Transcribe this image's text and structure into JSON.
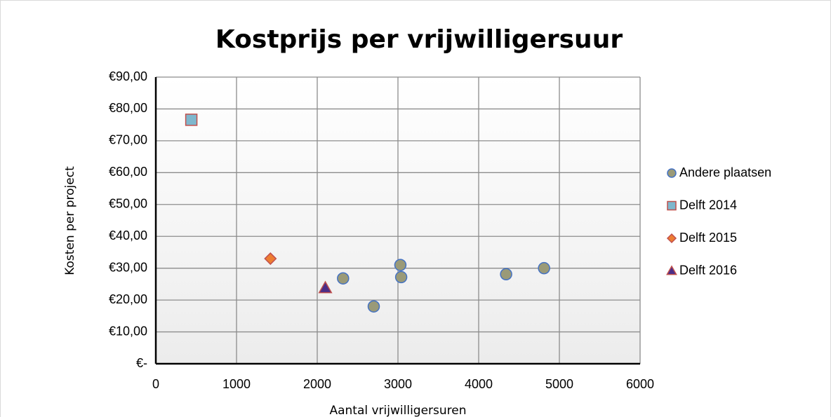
{
  "chart_data": {
    "type": "scatter",
    "title": "Kostprijs per vrijwilligersuur",
    "x_label": "Aantal vrijwilligersuren",
    "y_label": "Kosten per project",
    "xlim": [
      0,
      6000
    ],
    "xticks": [
      0,
      1000,
      2000,
      3000,
      4000,
      5000,
      6000
    ],
    "ylim": [
      0,
      90
    ],
    "yticks": [
      {
        "value": 0,
        "label": "€-"
      },
      {
        "value": 10,
        "label": "€10,00"
      },
      {
        "value": 20,
        "label": "€20,00"
      },
      {
        "value": 30,
        "label": "€30,00"
      },
      {
        "value": 40,
        "label": "€40,00"
      },
      {
        "value": 50,
        "label": "€50,00"
      },
      {
        "value": 60,
        "label": "€60,00"
      },
      {
        "value": 70,
        "label": "€70,00"
      },
      {
        "value": 80,
        "label": "€80,00"
      },
      {
        "value": 90,
        "label": "€90,00"
      }
    ],
    "grid": true,
    "legend": "right",
    "series": [
      {
        "name": "Andere plaatsen",
        "marker": "circle",
        "color": "#9a9a78",
        "edge_color": "#4472c4",
        "x": [
          2320,
          2700,
          3030,
          3040,
          4340,
          4810
        ],
        "values": [
          26.8,
          18.0,
          31.0,
          27.2,
          28.1,
          30.0
        ]
      },
      {
        "name": "Delft 2014",
        "marker": "square",
        "color": "#7fb7cd",
        "edge_color": "#c0504d",
        "x": [
          440
        ],
        "values": [
          76.6
        ]
      },
      {
        "name": "Delft 2015",
        "marker": "diamond",
        "color": "#ed7d31",
        "edge_color": "#c0504d",
        "x": [
          1420
        ],
        "values": [
          33.0
        ]
      },
      {
        "name": "Delft 2016",
        "marker": "triangle",
        "color": "#4b2d88",
        "edge_color": "#c0504d",
        "x": [
          2100
        ],
        "values": [
          23.8
        ]
      }
    ]
  }
}
